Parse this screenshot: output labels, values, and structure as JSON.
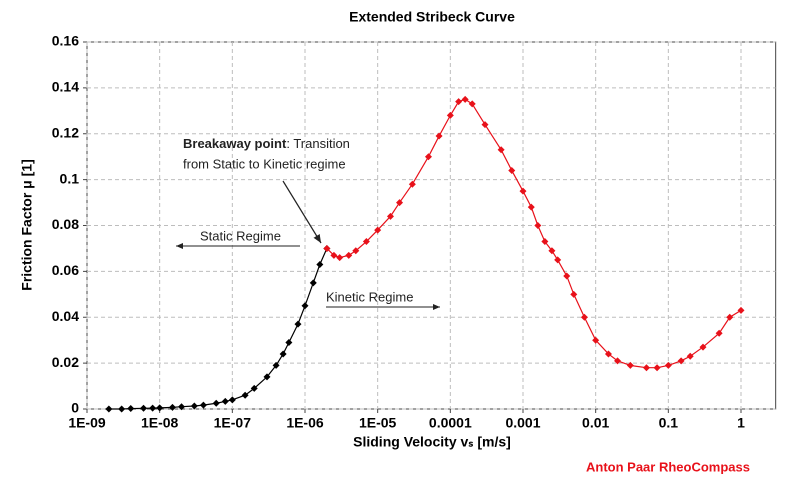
{
  "chart_data": {
    "type": "line",
    "title": "Extended Stribeck Curve",
    "x_label": "Sliding Velocity vₛ [m/s]",
    "y_label": "Friction Factor μ [1]",
    "xscale": "log",
    "grid": true,
    "markers": true,
    "xlim": [
      1e-09,
      3
    ],
    "ylim": [
      0,
      0.16
    ],
    "xticks": [
      {
        "value": 1e-09,
        "label": "1E-09"
      },
      {
        "value": 1e-08,
        "label": "1E-08"
      },
      {
        "value": 1e-07,
        "label": "1E-07"
      },
      {
        "value": 1e-06,
        "label": "1E-06"
      },
      {
        "value": 1e-05,
        "label": "1E-05"
      },
      {
        "value": 0.0001,
        "label": "0.0001"
      },
      {
        "value": 0.001,
        "label": "0.001"
      },
      {
        "value": 0.01,
        "label": "0.01"
      },
      {
        "value": 0.1,
        "label": "0.1"
      },
      {
        "value": 1,
        "label": "1"
      }
    ],
    "yticks": [
      0,
      0.02,
      0.04,
      0.06,
      0.08,
      0.1,
      0.12,
      0.14,
      0.16
    ],
    "series": [
      {
        "color": "#000000",
        "x": [
          2e-09,
          3e-09,
          4e-09,
          6e-09,
          8e-09,
          1e-08,
          1.5e-08,
          2e-08,
          3e-08,
          4e-08,
          6e-08,
          8e-08,
          1e-07,
          1.5e-07,
          2e-07,
          3e-07,
          4e-07,
          5e-07,
          6e-07,
          8e-07,
          1e-06,
          1.3e-06,
          1.6e-06,
          2e-06
        ],
        "values": [
          0,
          0,
          0.0002,
          0.0003,
          0.0004,
          0.0005,
          0.0007,
          0.001,
          0.0013,
          0.0017,
          0.0025,
          0.0033,
          0.004,
          0.006,
          0.009,
          0.014,
          0.019,
          0.024,
          0.029,
          0.037,
          0.045,
          0.055,
          0.063,
          0.07
        ]
      },
      {
        "color": "#e8111a",
        "x": [
          2e-06,
          2.5e-06,
          3e-06,
          4e-06,
          5e-06,
          7e-06,
          1e-05,
          1.5e-05,
          2e-05,
          3e-05,
          5e-05,
          7e-05,
          0.0001,
          0.00013,
          0.00016,
          0.0002,
          0.0003,
          0.0005,
          0.0007,
          0.001,
          0.0013,
          0.0016,
          0.002,
          0.0025,
          0.003,
          0.004,
          0.005,
          0.007,
          0.01,
          0.015,
          0.02,
          0.03,
          0.05,
          0.07,
          0.1,
          0.15,
          0.2,
          0.3,
          0.5,
          0.7,
          1
        ],
        "values": [
          0.07,
          0.067,
          0.066,
          0.067,
          0.069,
          0.073,
          0.078,
          0.084,
          0.09,
          0.098,
          0.11,
          0.119,
          0.128,
          0.134,
          0.135,
          0.133,
          0.124,
          0.113,
          0.104,
          0.095,
          0.088,
          0.08,
          0.073,
          0.069,
          0.065,
          0.058,
          0.05,
          0.04,
          0.03,
          0.024,
          0.021,
          0.019,
          0.018,
          0.018,
          0.019,
          0.021,
          0.023,
          0.027,
          0.033,
          0.04,
          0.043
        ]
      }
    ],
    "annotations": [
      "Breakaway point",
      ": Transition",
      "from Static to Kinetic regime",
      "Static Regime",
      "Kinetic Regime"
    ],
    "source": "Anton Paar RheoCompass"
  }
}
